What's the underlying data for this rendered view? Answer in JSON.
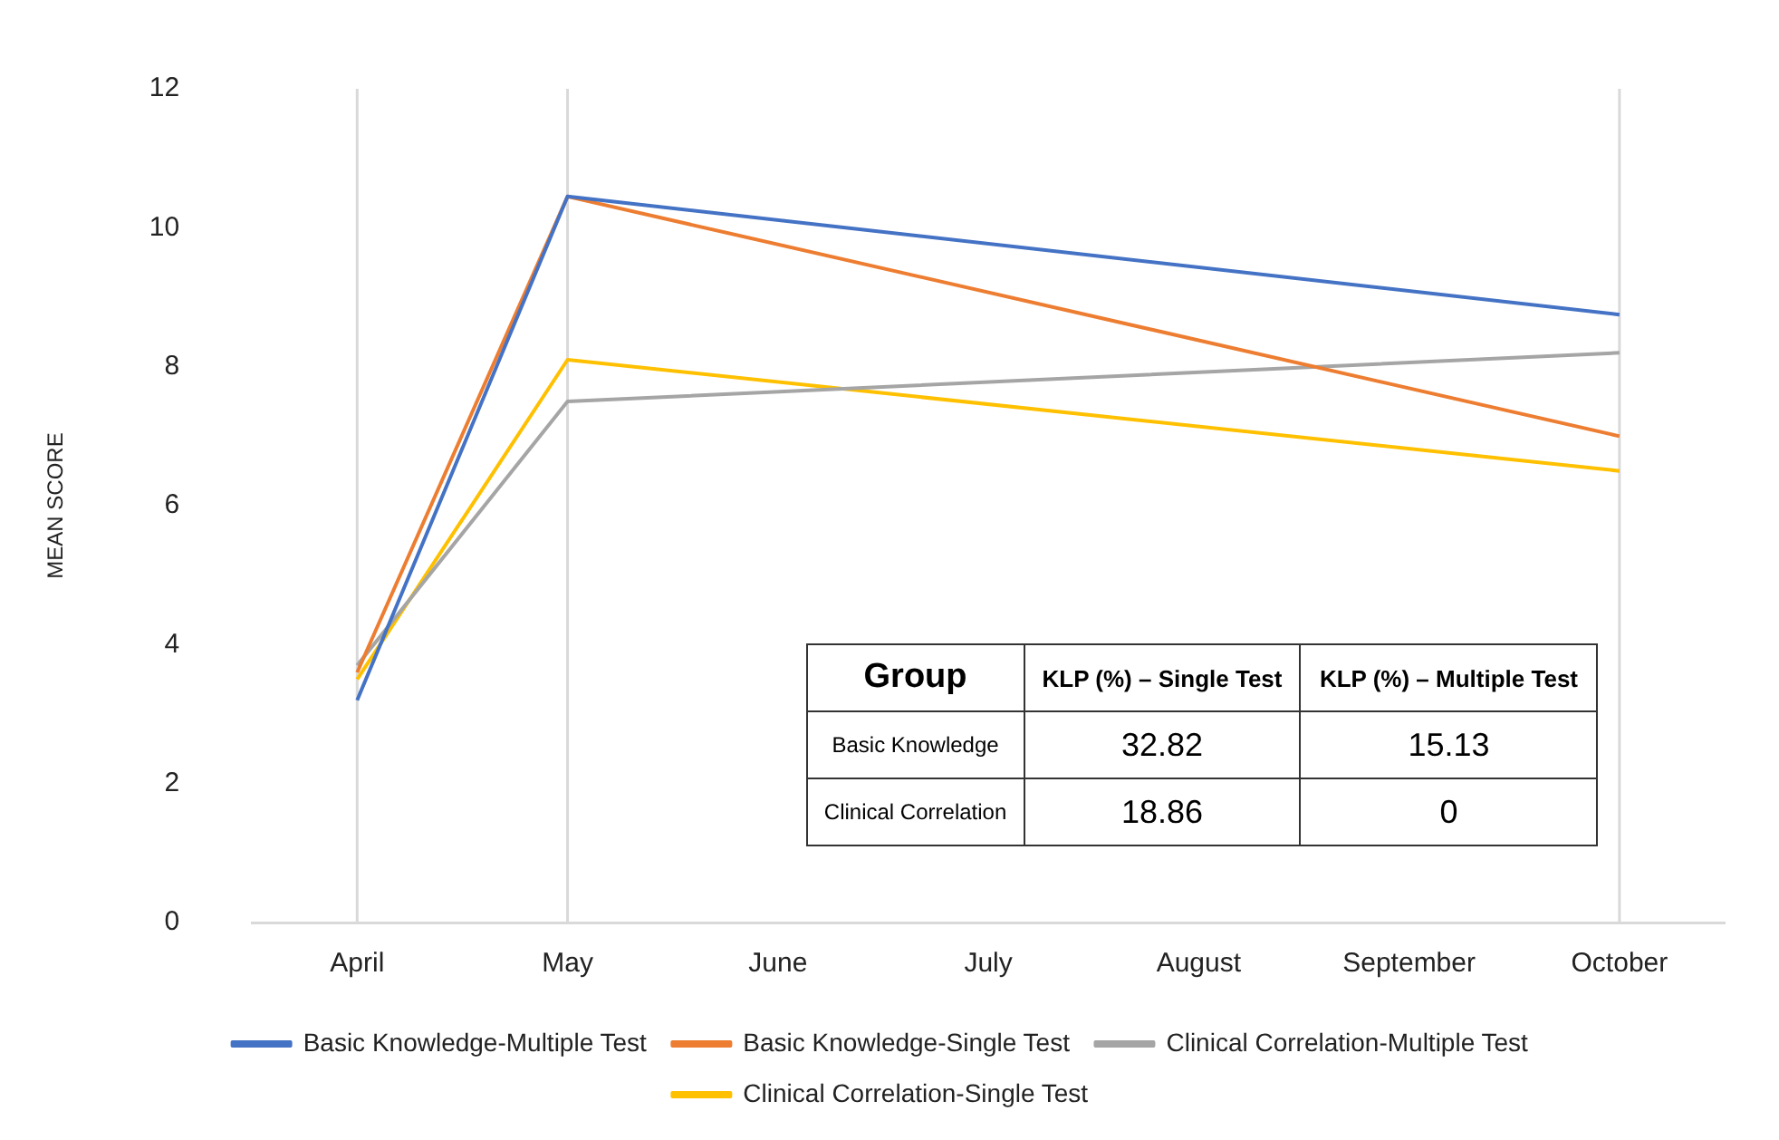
{
  "chart_data": {
    "type": "line",
    "ylabel": "MEAN SCORE",
    "categories": [
      "April",
      "May",
      "June",
      "July",
      "August",
      "September",
      "October"
    ],
    "series": [
      {
        "name": "Basic Knowledge-Multiple Test",
        "color": "#4472c4",
        "values": [
          3.2,
          10.45,
          null,
          null,
          null,
          null,
          8.75
        ]
      },
      {
        "name": "Basic Knowledge-Single Test",
        "color": "#ed7d31",
        "values": [
          3.6,
          10.45,
          null,
          null,
          null,
          null,
          7.0
        ]
      },
      {
        "name": "Clinical Correlation-Multiple Test",
        "color": "#a5a5a5",
        "values": [
          3.7,
          7.5,
          null,
          null,
          null,
          null,
          8.2
        ]
      },
      {
        "name": "Clinical Correlation-Single Test",
        "color": "#ffc000",
        "values": [
          3.5,
          8.1,
          null,
          null,
          null,
          null,
          6.5
        ]
      }
    ],
    "ylim": [
      0,
      12
    ],
    "yticks": [
      0,
      2,
      4,
      6,
      8,
      10,
      12
    ],
    "grid": false,
    "legend": "bottom",
    "marker": "none",
    "line_style": "solid",
    "ref_lines": [
      {
        "axis": "x",
        "value": "April",
        "color": "#d9d9d9"
      },
      {
        "axis": "x",
        "value": "May",
        "color": "#d9d9d9"
      },
      {
        "axis": "x",
        "value": "October",
        "color": "#d9d9d9"
      }
    ],
    "annotations": [
      "Group",
      "KLP (%) – Single Test",
      "KLP (%) – Multiple Test",
      "Basic Knowledge",
      "32.82",
      "15.13",
      "Clinical Correlation",
      "18.86",
      "0"
    ]
  }
}
